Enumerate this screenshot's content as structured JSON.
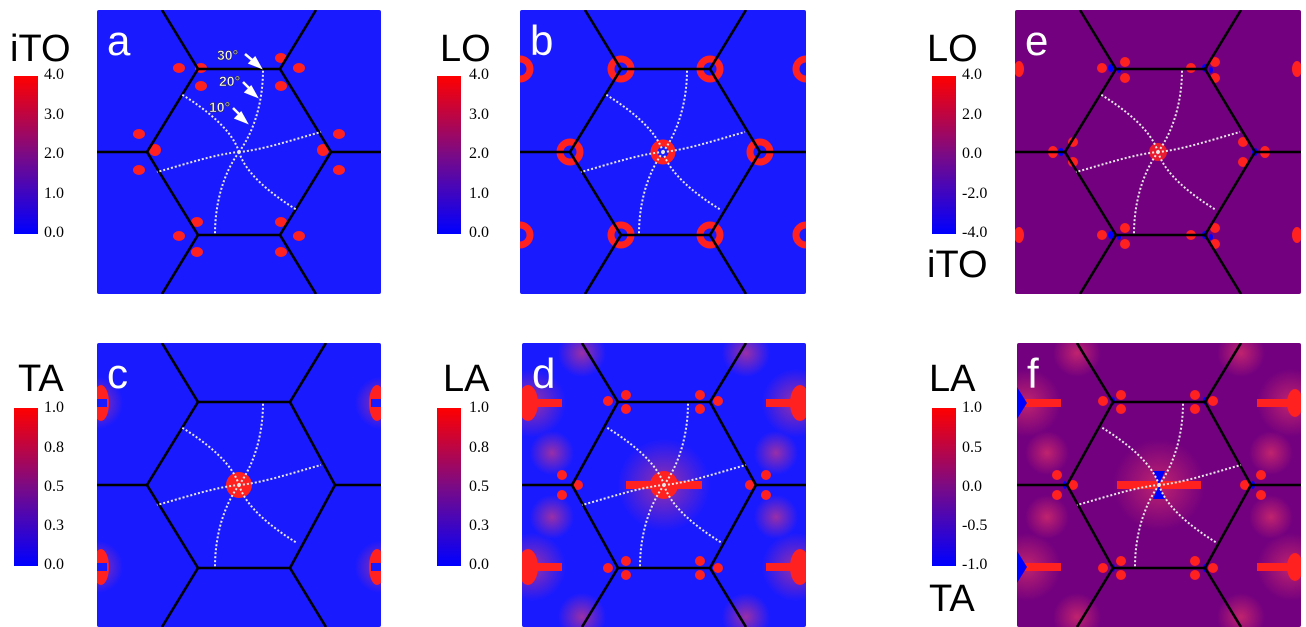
{
  "colors": {
    "blue": "#1a1aff",
    "purple": "#73007f",
    "red": "#ff2020",
    "lattice": "#000000",
    "path": "#e8e8e8"
  },
  "panels": [
    {
      "id": "a",
      "letter": "a",
      "mode": "iTO",
      "bg": "blue",
      "colorbar": {
        "ticks": [
          "4.0",
          "3.0",
          "2.0",
          "1.0",
          "0.0"
        ],
        "gradient": "blue-red"
      },
      "annotations": [
        "30°",
        "20°",
        "10°"
      ]
    },
    {
      "id": "b",
      "letter": "b",
      "mode": "LO",
      "bg": "blue",
      "colorbar": {
        "ticks": [
          "4.0",
          "3.0",
          "2.0",
          "1.0",
          "0.0"
        ],
        "gradient": "blue-red"
      }
    },
    {
      "id": "e",
      "letter": "e",
      "mode": "LO",
      "mode_bottom": "iTO",
      "bg": "purple",
      "colorbar": {
        "ticks": [
          "4.0",
          "2.0",
          "0.0",
          "-2.0",
          "-4.0"
        ],
        "gradient": "blue-red"
      }
    },
    {
      "id": "c",
      "letter": "c",
      "mode": "TA",
      "bg": "blue",
      "colorbar": {
        "ticks": [
          "1.0",
          "0.8",
          "0.5",
          "0.3",
          "0.0"
        ],
        "gradient": "blue-red"
      }
    },
    {
      "id": "d",
      "letter": "d",
      "mode": "LA",
      "bg": "blue",
      "colorbar": {
        "ticks": [
          "1.0",
          "0.8",
          "0.5",
          "0.3",
          "0.0"
        ],
        "gradient": "blue-red"
      }
    },
    {
      "id": "f",
      "letter": "f",
      "mode": "LA",
      "mode_bottom": "TA",
      "bg": "purple",
      "colorbar": {
        "ticks": [
          "1.0",
          "0.5",
          "0.0",
          "-0.5",
          "-1.0"
        ],
        "gradient": "blue-red"
      }
    }
  ]
}
